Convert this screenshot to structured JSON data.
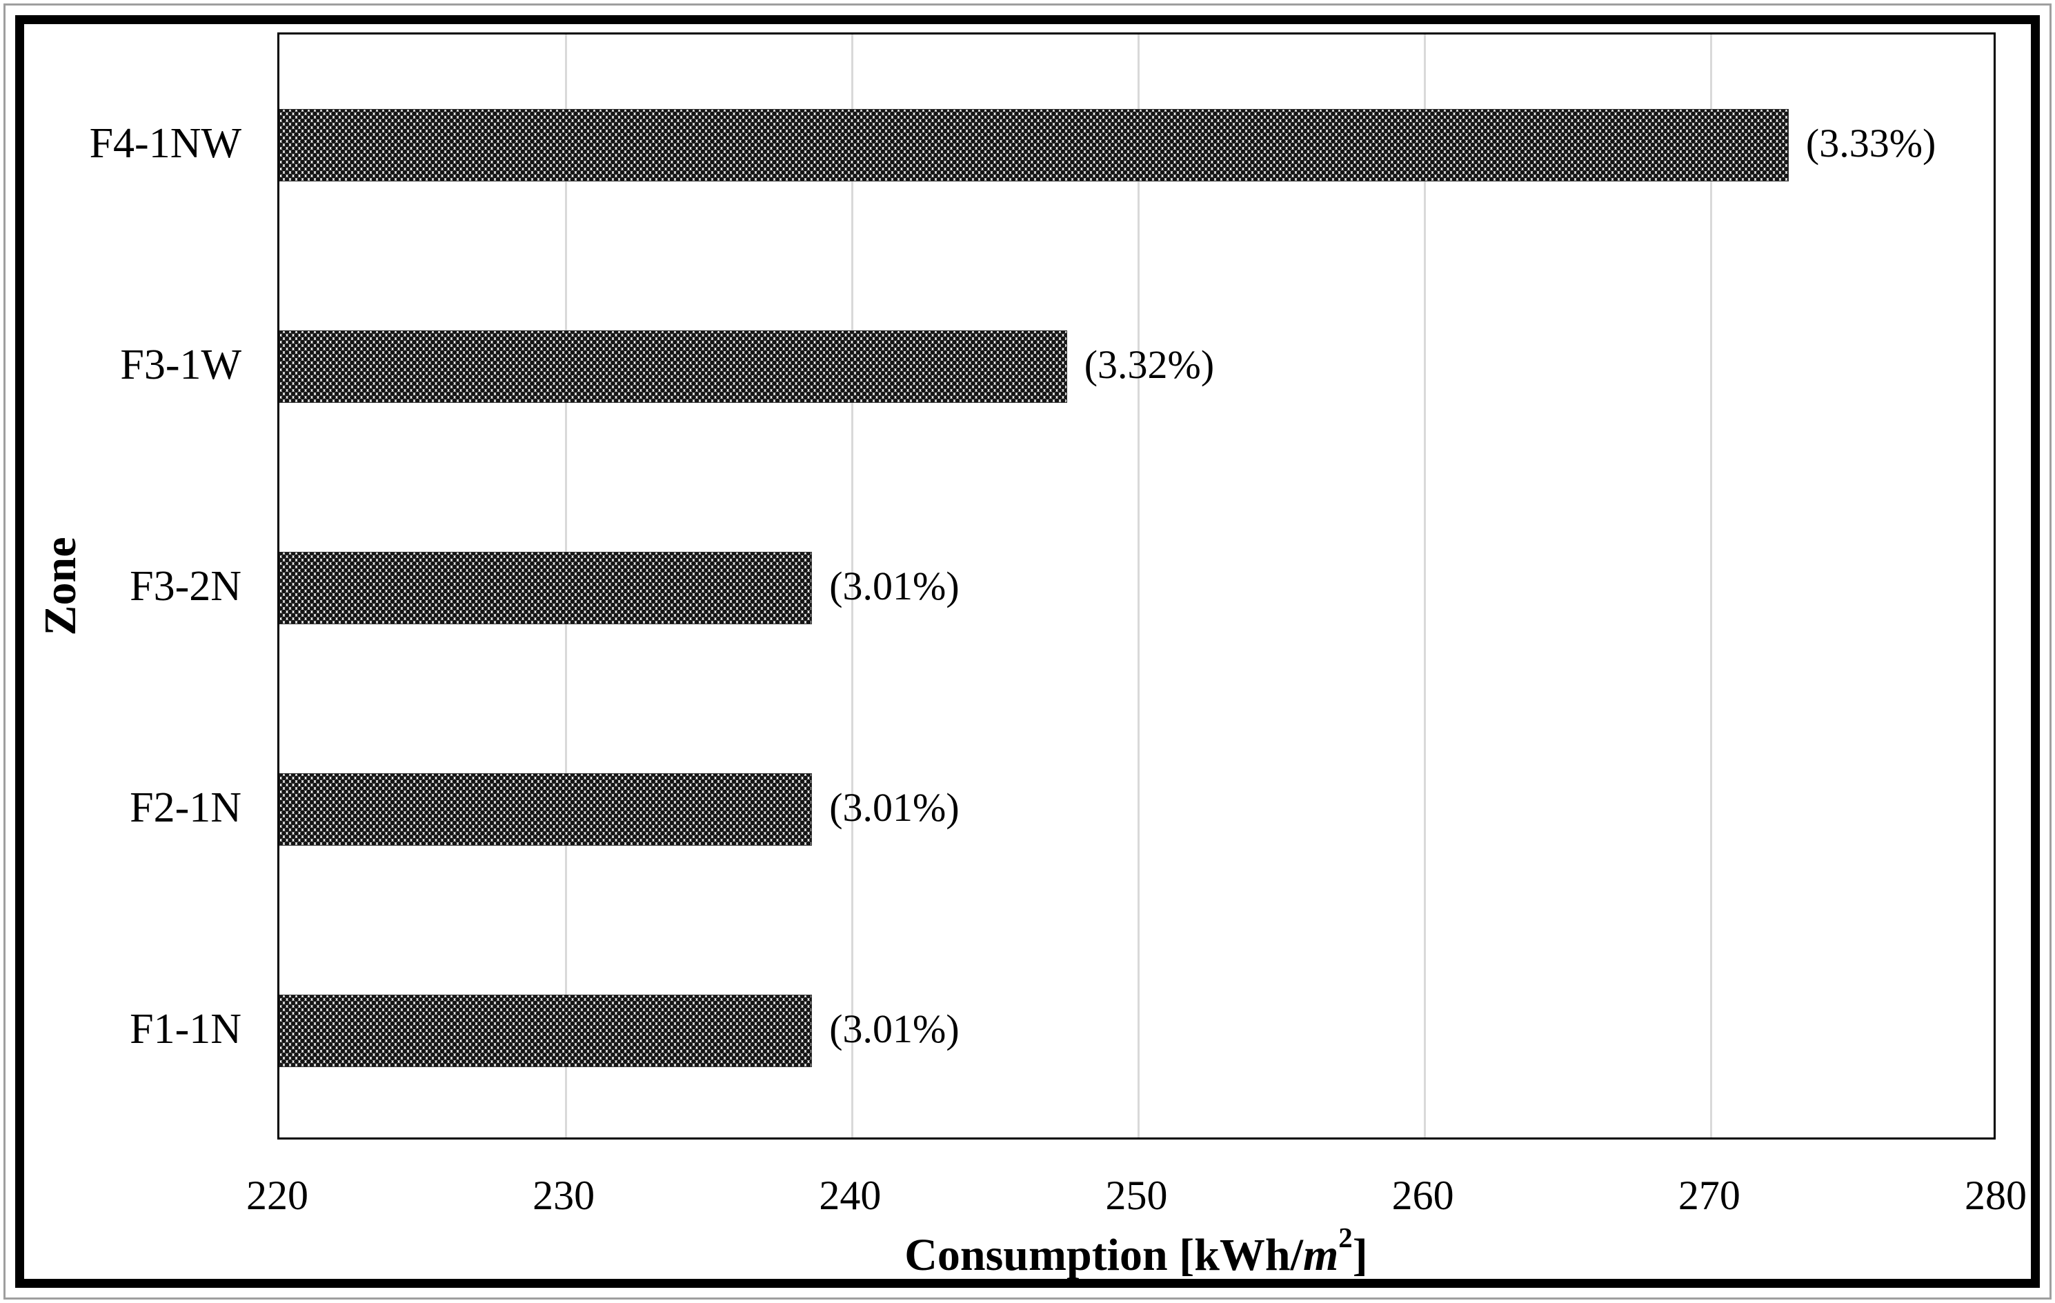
{
  "figure": {
    "background": "#ffffff",
    "frame_color": "#000000"
  },
  "chart_data": {
    "type": "bar",
    "orientation": "horizontal",
    "title": "",
    "xlabel": "Consumption [kWh/m2]",
    "xlabel_parts": {
      "prefix": "Consumption [kWh/",
      "unit_italic": "m",
      "superscript": "2",
      "suffix": "]"
    },
    "ylabel": "Zone",
    "categories": [
      "F4-1NW",
      "F3-1W",
      "F3-2N",
      "F2-1N",
      "F1-1N"
    ],
    "values": [
      272.7,
      247.5,
      238.6,
      238.6,
      238.6
    ],
    "bar_labels": [
      "(3.33%)",
      "(3.32%)",
      "(3.01%)",
      "(3.01%)",
      "(3.01%)"
    ],
    "xlim": [
      220,
      280
    ],
    "xticks": [
      220,
      230,
      240,
      250,
      260,
      270,
      280
    ],
    "grid": "vertical",
    "legend": "none",
    "bar_fill": "dotted-black-pattern",
    "colors": {
      "bar_dot": "#161616",
      "gridline": "#d9d9d9",
      "axis": "#000000",
      "text": "#000000"
    }
  }
}
